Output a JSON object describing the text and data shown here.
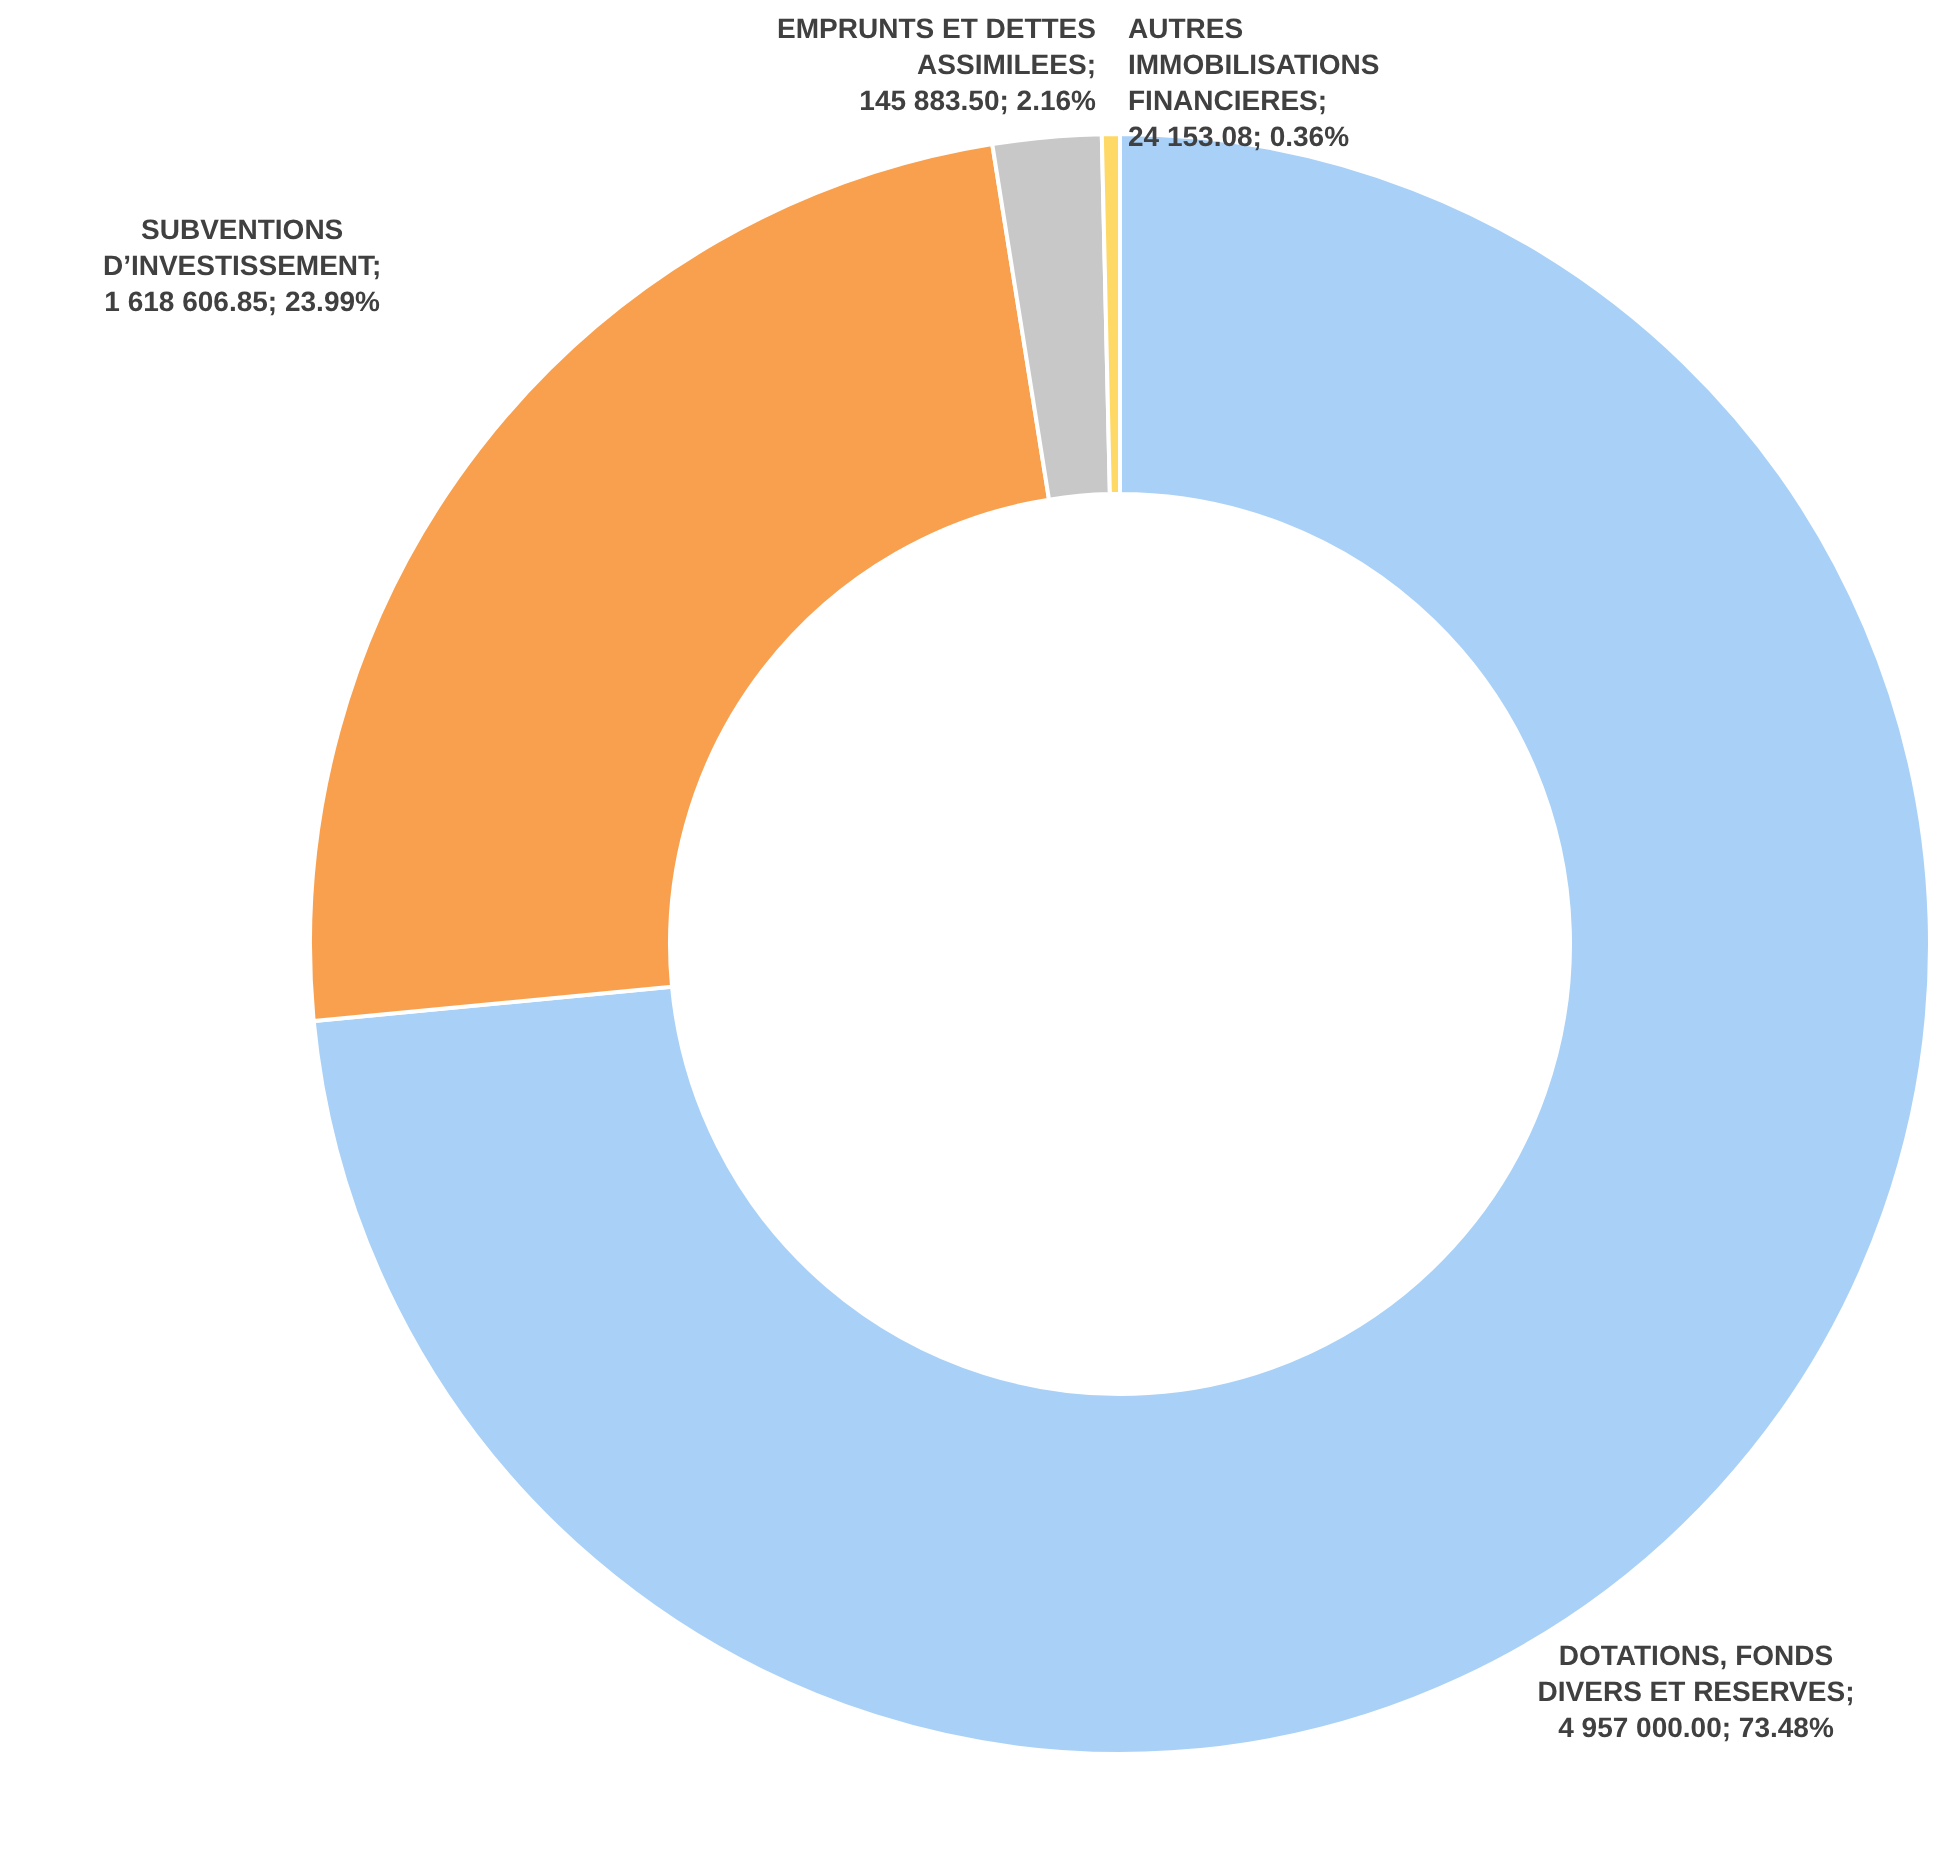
{
  "chart_data": {
    "type": "donut",
    "categories": [
      "DOTATIONS, FONDS DIVERS ET RESERVES",
      "SUBVENTIONS D’INVESTISSEMENT",
      "EMPRUNTS ET DETTES ASSIMILEES",
      "AUTRES IMMOBILISATIONS FINANCIERES"
    ],
    "values": [
      4957000.0,
      1618606.85,
      145883.5,
      24153.08
    ],
    "value_labels": [
      "; 4 957 000.00; 73.48%",
      "; 1 618 606.85; 23.99%",
      "; 145 883.50; 2.16%",
      "; 24 153.08; 0.36%"
    ],
    "colors": [
      "#a9d1f7",
      "#f9a04f",
      "#c8c8c8",
      "#ffd966"
    ]
  }
}
